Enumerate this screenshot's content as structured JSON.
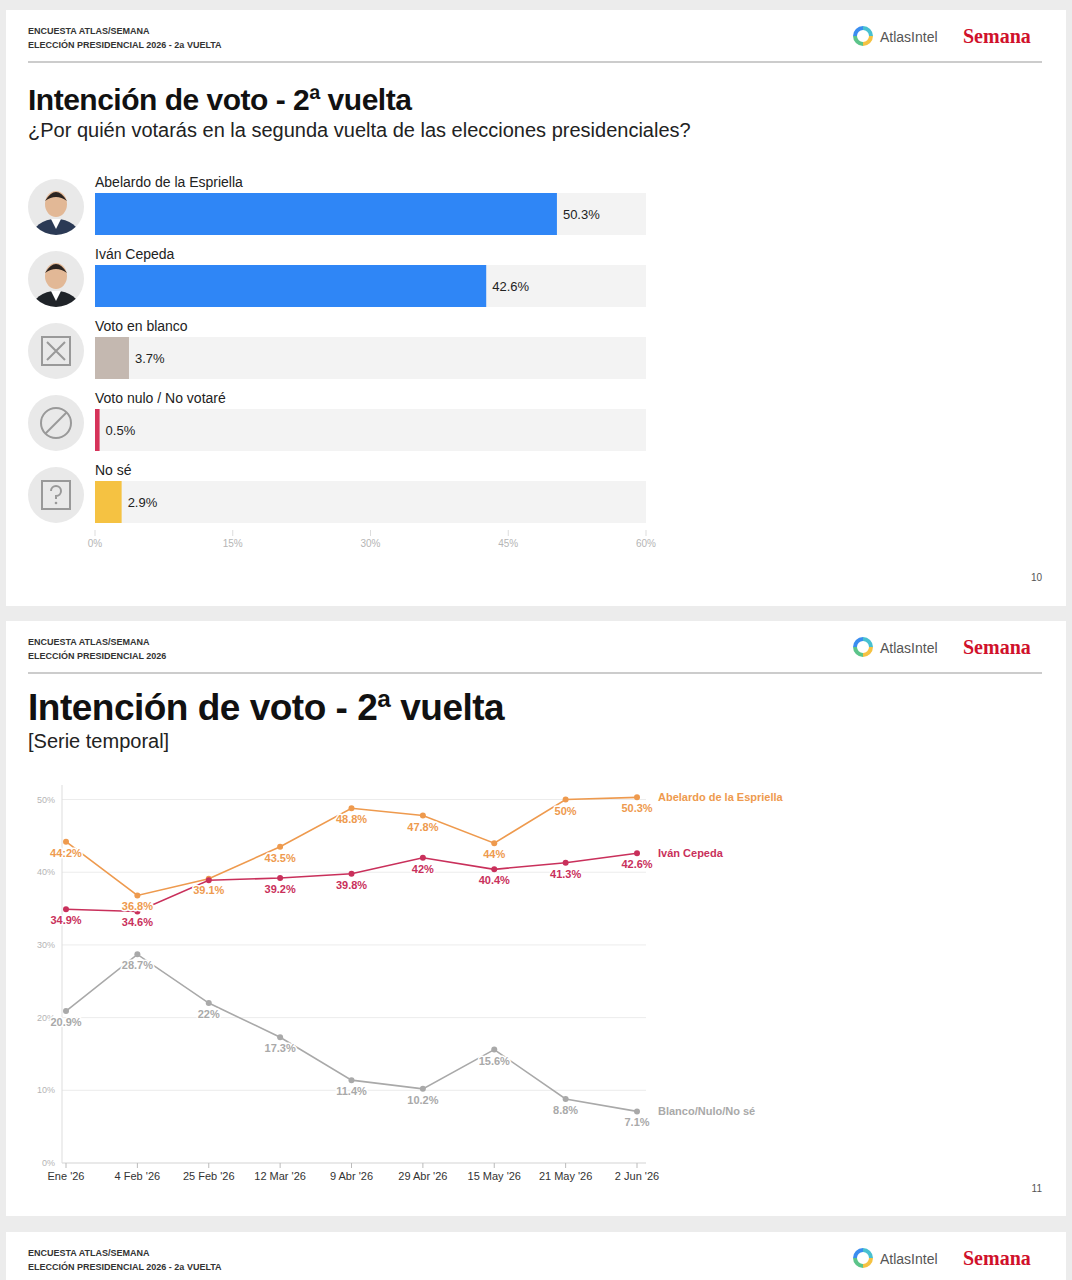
{
  "pages": [
    {
      "header": [
        "ENCUESTA ATLAS/SEMANA",
        "ELECCIÓN PRESIDENCIAL 2026 - 2a VUELTA"
      ],
      "brands": [
        "AtlasIntel",
        "Semana"
      ],
      "page_number": 10
    },
    {
      "header": [
        "ENCUESTA ATLAS/SEMANA",
        "ELECCIÓN PRESIDENCIAL 2026"
      ],
      "brands": [
        "AtlasIntel",
        "Semana"
      ],
      "page_number": 11
    },
    {
      "header": [
        "ENCUESTA ATLAS/SEMANA",
        "ELECCIÓN PRESIDENCIAL 2026 - 2a VUELTA"
      ],
      "brands": [
        "AtlasIntel",
        "Semana"
      ]
    }
  ],
  "chart_data": [
    {
      "type": "bar",
      "orientation": "horizontal",
      "title": "Intención de voto - 2ª vuelta",
      "subtitle": "¿Por quién votarás en la segunda vuelta de las elecciones presidenciales?",
      "categories": [
        "Abelardo de la Espriella",
        "Iván Cepeda",
        "Voto en blanco",
        "Voto nulo / No votaré",
        "No sé"
      ],
      "values": [
        50.3,
        42.6,
        3.7,
        0.5,
        2.9
      ],
      "value_labels": [
        "50.3%",
        "42.6%",
        "3.7%",
        "0.5%",
        "2.9%"
      ],
      "colors": [
        "#2f86f6",
        "#2f86f6",
        "#c4b8b0",
        "#d6335a",
        "#f5c242"
      ],
      "xlim": [
        0,
        60
      ],
      "xticks": [
        {
          "value": 0,
          "label": "0%"
        },
        {
          "value": 15,
          "label": "15%"
        },
        {
          "value": 30,
          "label": "30%"
        },
        {
          "value": 45,
          "label": "45%"
        },
        {
          "value": 60,
          "label": "60%"
        }
      ],
      "grid": false,
      "data_labels": true
    },
    {
      "type": "line",
      "title": "Intención de voto - 2ª vuelta",
      "subtitle": "[Serie temporal]",
      "categories": [
        "Ene '26",
        "4 Feb '26",
        "25 Feb '26",
        "12 Mar '26",
        "9 Abr '26",
        "29 Abr '26",
        "15 May '26",
        "21 May '26",
        "2 Jun '26"
      ],
      "series": [
        {
          "name": "Abelardo de la Espriella",
          "color": "#ee9a4e",
          "values": [
            44.2,
            36.8,
            39.1,
            43.5,
            48.8,
            47.8,
            44,
            50,
            50.3
          ],
          "value_labels": [
            "44:2%",
            "36.8%",
            "39.1%",
            "43.5%",
            "48.8%",
            "47.8%",
            "44%",
            "50%",
            "50.3%"
          ]
        },
        {
          "name": "Iván Cepeda",
          "color": "#c9305b",
          "values": [
            34.9,
            34.6,
            38.9,
            39.2,
            39.8,
            42,
            40.4,
            41.3,
            42.6
          ],
          "value_labels": [
            "34.9%",
            "34.6%",
            null,
            "39.2%",
            "39.8%",
            "42%",
            "40.4%",
            "41.3%",
            "42.6%"
          ]
        },
        {
          "name": "Blanco/Nulo/No sé",
          "color": "#a9a9a9",
          "values": [
            20.9,
            28.7,
            22,
            17.3,
            11.4,
            10.2,
            15.6,
            8.8,
            7.1
          ],
          "value_labels": [
            "20.9%",
            "28.7%",
            "22%",
            "17.3%",
            "11.4%",
            "10.2%",
            "15.6%",
            "8.8%",
            "7.1%"
          ]
        }
      ],
      "ylim": [
        0,
        52
      ],
      "yticks": [
        {
          "value": 0,
          "label": "0%"
        },
        {
          "value": 10,
          "label": "10%"
        },
        {
          "value": 20,
          "label": "20%"
        },
        {
          "value": 30,
          "label": "30%"
        },
        {
          "value": 40,
          "label": "40%"
        },
        {
          "value": 50,
          "label": "50%"
        }
      ],
      "grid": true,
      "data_labels": true,
      "legend": "right",
      "marker": "circle"
    }
  ]
}
